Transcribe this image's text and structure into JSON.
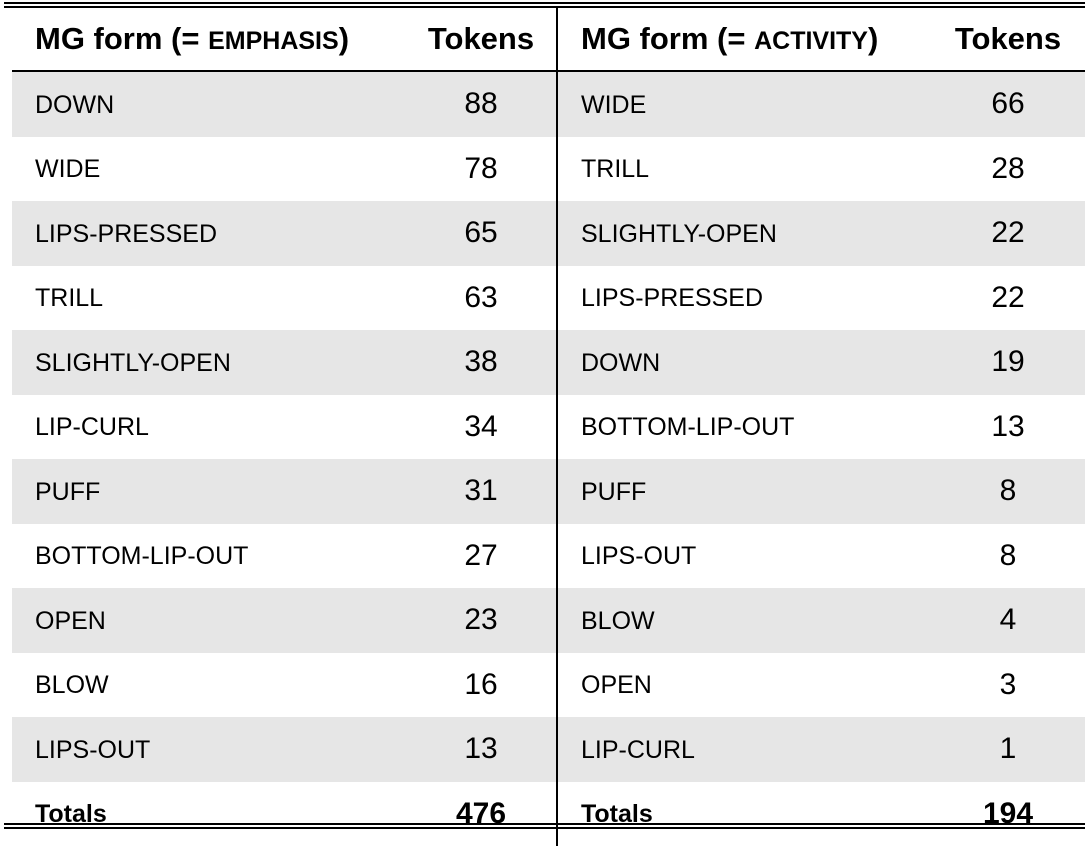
{
  "headers": {
    "left_form_prefix": "MG form (= ",
    "left_form_smallcaps": "emphasis",
    "left_form_suffix": ")",
    "left_tokens": "Tokens",
    "right_form_prefix": "MG form (= ",
    "right_form_smallcaps": "activity",
    "right_form_suffix": ")",
    "right_tokens": "Tokens"
  },
  "rows": [
    {
      "left_form": "DOWN",
      "left_tokens": "88",
      "right_form": "WIDE",
      "right_tokens": "66"
    },
    {
      "left_form": "WIDE",
      "left_tokens": "78",
      "right_form": "TRILL",
      "right_tokens": "28"
    },
    {
      "left_form": "LIPS-PRESSED",
      "left_tokens": "65",
      "right_form": "SLIGHTLY-OPEN",
      "right_tokens": "22"
    },
    {
      "left_form": "TRILL",
      "left_tokens": "63",
      "right_form": "LIPS-PRESSED",
      "right_tokens": "22"
    },
    {
      "left_form": "SLIGHTLY-OPEN",
      "left_tokens": "38",
      "right_form": "DOWN",
      "right_tokens": "19"
    },
    {
      "left_form": "LIP-CURL",
      "left_tokens": "34",
      "right_form": "BOTTOM-LIP-OUT",
      "right_tokens": "13"
    },
    {
      "left_form": "PUFF",
      "left_tokens": "31",
      "right_form": "PUFF",
      "right_tokens": "8"
    },
    {
      "left_form": "BOTTOM-LIP-OUT",
      "left_tokens": "27",
      "right_form": "LIPS-OUT",
      "right_tokens": "8"
    },
    {
      "left_form": "OPEN",
      "left_tokens": "23",
      "right_form": "BLOW",
      "right_tokens": "4"
    },
    {
      "left_form": "BLOW",
      "left_tokens": "16",
      "right_form": "OPEN",
      "right_tokens": "3"
    },
    {
      "left_form": "LIPS-OUT",
      "left_tokens": "13",
      "right_form": "LIP-CURL",
      "right_tokens": "1"
    }
  ],
  "totals": {
    "left_label": "Totals",
    "left_value": "476",
    "right_label": "Totals",
    "right_value": "194"
  }
}
